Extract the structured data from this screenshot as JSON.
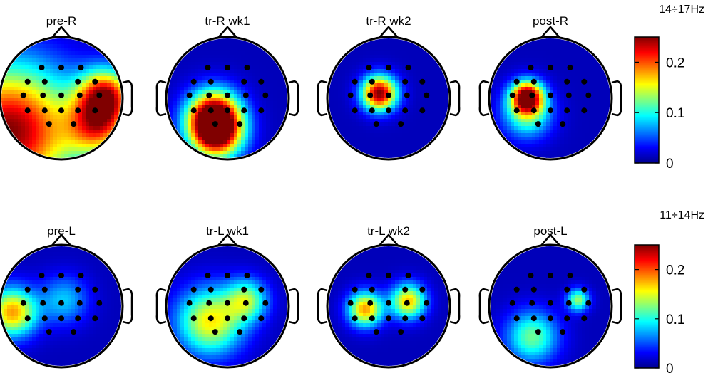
{
  "chart_data": [
    {
      "type": "heatmap",
      "subtype": "EEG scalp topography",
      "band": "14÷17Hz",
      "colorbar": {
        "min": 0,
        "max": 0.25,
        "ticks": [
          0,
          0.1,
          0.2
        ],
        "tick_labels": [
          "0",
          "0.1",
          "0.2"
        ],
        "colormap": "jet"
      },
      "maps": [
        {
          "title": "pre-R",
          "hotspots": [
            {
              "x": -0.85,
              "y": -0.55,
              "value": 0.25,
              "spread": 0.75
            },
            {
              "x": 0.72,
              "y": 0.05,
              "value": 0.2,
              "spread": 0.3
            },
            {
              "x": 0.6,
              "y": -0.45,
              "value": 0.17,
              "spread": 0.35
            }
          ]
        },
        {
          "title": "tr-R wk1",
          "hotspots": [
            {
              "x": -0.22,
              "y": -0.3,
              "value": 0.25,
              "spread": 0.3
            },
            {
              "x": -0.18,
              "y": -0.6,
              "value": 0.2,
              "spread": 0.3
            }
          ]
        },
        {
          "title": "tr-R wk2",
          "hotspots": [
            {
              "x": -0.15,
              "y": 0.08,
              "value": 0.25,
              "spread": 0.2
            }
          ]
        },
        {
          "title": "post-R",
          "hotspots": [
            {
              "x": -0.38,
              "y": 0.02,
              "value": 0.24,
              "spread": 0.18
            },
            {
              "x": -0.38,
              "y": -0.25,
              "value": 0.12,
              "spread": 0.28
            }
          ]
        }
      ]
    },
    {
      "type": "heatmap",
      "subtype": "EEG scalp topography",
      "band": "11÷14Hz",
      "colorbar": {
        "min": 0,
        "max": 0.25,
        "ticks": [
          0,
          0.1,
          0.2
        ],
        "tick_labels": [
          "0",
          "0.1",
          "0.2"
        ],
        "colormap": "jet"
      },
      "maps": [
        {
          "title": "pre-L",
          "hotspots": [
            {
              "x": -0.8,
              "y": -0.1,
              "value": 0.18,
              "spread": 0.28
            },
            {
              "x": 0.05,
              "y": 0.1,
              "value": 0.08,
              "spread": 0.28
            }
          ]
        },
        {
          "title": "tr-L wk1",
          "hotspots": [
            {
              "x": -0.28,
              "y": -0.25,
              "value": 0.16,
              "spread": 0.38
            },
            {
              "x": 0.32,
              "y": 0.1,
              "value": 0.12,
              "spread": 0.24
            }
          ]
        },
        {
          "title": "tr-L wk2",
          "hotspots": [
            {
              "x": -0.38,
              "y": -0.05,
              "value": 0.18,
              "spread": 0.2
            },
            {
              "x": 0.32,
              "y": 0.08,
              "value": 0.17,
              "spread": 0.2
            }
          ]
        },
        {
          "title": "post-L",
          "hotspots": [
            {
              "x": -0.3,
              "y": -0.5,
              "value": 0.12,
              "spread": 0.3
            },
            {
              "x": 0.45,
              "y": 0.1,
              "value": 0.13,
              "spread": 0.13
            }
          ]
        }
      ]
    }
  ]
}
